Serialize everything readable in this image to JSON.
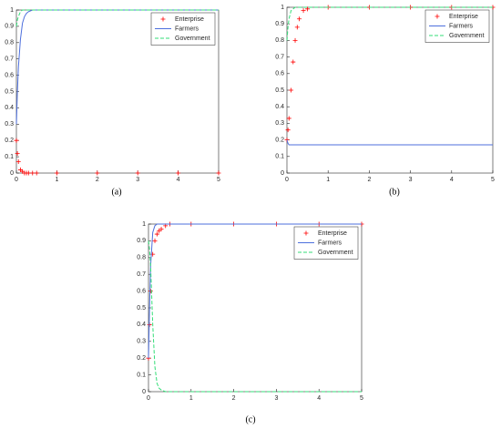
{
  "chart_data": [
    {
      "type": "line",
      "caption": "(a)",
      "xlim": [
        0,
        5
      ],
      "ylim": [
        0,
        1
      ],
      "xticks": [
        0,
        1,
        2,
        3,
        4,
        5
      ],
      "yticks": [
        0,
        0.1,
        0.2,
        0.3,
        0.4,
        0.5,
        0.6,
        0.7,
        0.8,
        0.9,
        1
      ],
      "legend": "upper right",
      "x": [
        0,
        0.025,
        0.05,
        0.1,
        0.15,
        0.2,
        0.25,
        0.3,
        0.4,
        0.5,
        1,
        2,
        3,
        4,
        5
      ],
      "series": [
        {
          "name": "Enterprise",
          "color": "#ff0000",
          "marker": "+",
          "linestyle": "none",
          "values": [
            0.2,
            0.12,
            0.07,
            0.02,
            0.01,
            0,
            0,
            0,
            0,
            0,
            0,
            0,
            0,
            0,
            0
          ]
        },
        {
          "name": "Farmers",
          "color": "#4d6fdd",
          "marker": "none",
          "linestyle": "solid",
          "values": [
            0.3,
            0.5,
            0.65,
            0.82,
            0.92,
            0.96,
            0.98,
            0.99,
            1,
            1,
            1,
            1,
            1,
            1,
            1
          ]
        },
        {
          "name": "Government",
          "color": "#33dd77",
          "marker": "none",
          "linestyle": "dashed",
          "values": [
            0.9,
            0.94,
            0.96,
            0.99,
            1,
            1,
            1,
            1,
            1,
            1,
            1,
            1,
            1,
            1,
            1
          ]
        }
      ]
    },
    {
      "type": "line",
      "caption": "(b)",
      "xlim": [
        0,
        5
      ],
      "ylim": [
        0,
        1
      ],
      "xticks": [
        0,
        1,
        2,
        3,
        4,
        5
      ],
      "yticks": [
        0,
        0.1,
        0.2,
        0.3,
        0.4,
        0.5,
        0.6,
        0.7,
        0.8,
        0.9,
        1
      ],
      "legend": "upper right",
      "x": [
        0,
        0.025,
        0.05,
        0.1,
        0.15,
        0.2,
        0.25,
        0.3,
        0.4,
        0.5,
        1,
        2,
        3,
        4,
        5
      ],
      "series": [
        {
          "name": "Enterprise",
          "color": "#ff0000",
          "marker": "+",
          "linestyle": "none",
          "values": [
            0.2,
            0.26,
            0.33,
            0.5,
            0.67,
            0.8,
            0.88,
            0.93,
            0.98,
            0.99,
            1,
            1,
            1,
            1,
            1
          ]
        },
        {
          "name": "Farmers",
          "color": "#4d6fdd",
          "marker": "none",
          "linestyle": "solid",
          "values": [
            0.2,
            0.18,
            0.17,
            0.17,
            0.17,
            0.17,
            0.17,
            0.17,
            0.17,
            0.17,
            0.17,
            0.17,
            0.17,
            0.17,
            0.17
          ]
        },
        {
          "name": "Government",
          "color": "#33dd77",
          "marker": "none",
          "linestyle": "dashed",
          "values": [
            0.8,
            0.88,
            0.93,
            0.98,
            0.99,
            1,
            1,
            1,
            1,
            1,
            1,
            1,
            1,
            1,
            1
          ]
        }
      ]
    },
    {
      "type": "line",
      "caption": "(c)",
      "xlim": [
        0,
        5
      ],
      "ylim": [
        0,
        1
      ],
      "xticks": [
        0,
        1,
        2,
        3,
        4,
        5
      ],
      "yticks": [
        0,
        0.1,
        0.2,
        0.3,
        0.4,
        0.5,
        0.6,
        0.7,
        0.8,
        0.9,
        1
      ],
      "legend": "upper right",
      "x": [
        0,
        0.025,
        0.05,
        0.1,
        0.15,
        0.2,
        0.25,
        0.3,
        0.4,
        0.5,
        1,
        2,
        3,
        4,
        5
      ],
      "series": [
        {
          "name": "Enterprise",
          "color": "#ff0000",
          "marker": "+",
          "linestyle": "none",
          "values": [
            0.2,
            0.4,
            0.6,
            0.82,
            0.9,
            0.94,
            0.96,
            0.97,
            0.99,
            1,
            1,
            1,
            1,
            1,
            1
          ]
        },
        {
          "name": "Farmers",
          "color": "#4d6fdd",
          "marker": "none",
          "linestyle": "solid",
          "values": [
            0.2,
            0.5,
            0.75,
            0.95,
            0.99,
            1,
            1,
            1,
            1,
            1,
            1,
            1,
            1,
            1,
            1
          ]
        },
        {
          "name": "Government",
          "color": "#33dd77",
          "marker": "none",
          "linestyle": "dashed",
          "values": [
            0.9,
            0.85,
            0.75,
            0.4,
            0.15,
            0.05,
            0.02,
            0.01,
            0,
            0,
            0,
            0,
            0,
            0,
            0
          ]
        }
      ]
    }
  ]
}
